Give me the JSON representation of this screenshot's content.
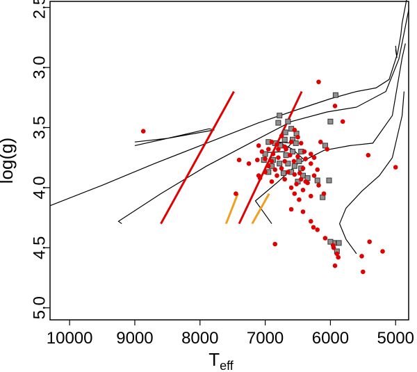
{
  "chart_data": {
    "type": "scatter",
    "xlabel": "T",
    "xlabel_subscript": "eff",
    "ylabel": "log(g)",
    "xlim": [
      10300,
      4800
    ],
    "ylim": [
      5.1,
      2.45
    ],
    "x_ticks": [
      10000,
      9000,
      8000,
      7000,
      6000,
      5000
    ],
    "y_ticks": [
      2.5,
      3.0,
      3.5,
      4.0,
      4.5,
      5.0
    ],
    "grid": false,
    "colors": {
      "circles": "#e00000",
      "squares": "#909090",
      "red_lines": "#e00000",
      "orange_lines": "#f0a020",
      "tracks": "#000000"
    },
    "red_circles": [
      [
        8870,
        3.53
      ],
      [
        6180,
        3.12
      ],
      [
        5810,
        3.45
      ],
      [
        5930,
        3.32
      ],
      [
        6550,
        3.52
      ],
      [
        6750,
        3.57
      ],
      [
        6900,
        3.62
      ],
      [
        7100,
        3.65
      ],
      [
        7050,
        3.7
      ],
      [
        6950,
        3.68
      ],
      [
        6820,
        3.64
      ],
      [
        6700,
        3.66
      ],
      [
        6600,
        3.62
      ],
      [
        6500,
        3.58
      ],
      [
        6450,
        3.63
      ],
      [
        6400,
        3.7
      ],
      [
        6380,
        3.76
      ],
      [
        6500,
        3.74
      ],
      [
        6620,
        3.73
      ],
      [
        6700,
        3.78
      ],
      [
        6800,
        3.75
      ],
      [
        6880,
        3.72
      ],
      [
        7000,
        3.76
      ],
      [
        7120,
        3.77
      ],
      [
        7250,
        3.8
      ],
      [
        7400,
        3.77
      ],
      [
        6950,
        3.82
      ],
      [
        6850,
        3.85
      ],
      [
        6750,
        3.84
      ],
      [
        6650,
        3.87
      ],
      [
        6550,
        3.89
      ],
      [
        6450,
        3.93
      ],
      [
        6350,
        3.96
      ],
      [
        6250,
        3.9
      ],
      [
        6200,
        3.85
      ],
      [
        6300,
        3.8
      ],
      [
        6420,
        3.84
      ],
      [
        6520,
        3.97
      ],
      [
        6600,
        4.0
      ],
      [
        6700,
        3.93
      ],
      [
        6820,
        3.9
      ],
      [
        6900,
        3.95
      ],
      [
        7000,
        3.87
      ],
      [
        7080,
        3.92
      ],
      [
        6550,
        4.05
      ],
      [
        6420,
        4.02
      ],
      [
        6300,
        4.07
      ],
      [
        6180,
        3.98
      ],
      [
        6100,
        4.05
      ],
      [
        6480,
        4.1
      ],
      [
        6600,
        4.18
      ],
      [
        6420,
        4.2
      ],
      [
        6300,
        4.28
      ],
      [
        6260,
        4.33
      ],
      [
        6200,
        4.35
      ],
      [
        6080,
        4.42
      ],
      [
        5960,
        4.48
      ],
      [
        5950,
        4.5
      ],
      [
        5900,
        4.55
      ],
      [
        5930,
        4.65
      ],
      [
        5880,
        4.58
      ],
      [
        5420,
        3.73
      ],
      [
        5000,
        3.83
      ],
      [
        5400,
        4.45
      ],
      [
        5200,
        4.53
      ],
      [
        5520,
        4.57
      ],
      [
        5500,
        4.7
      ],
      [
        6850,
        4.47
      ],
      [
        7450,
        4.05
      ],
      [
        7100,
        3.9
      ],
      [
        6560,
        3.78
      ],
      [
        6680,
        3.68
      ],
      [
        6800,
        3.68
      ],
      [
        6300,
        3.72
      ],
      [
        6250,
        3.75
      ],
      [
        6150,
        3.62
      ],
      [
        6050,
        3.68
      ],
      [
        6900,
        3.78
      ],
      [
        6470,
        3.88
      ],
      [
        6380,
        3.95
      ]
    ],
    "grey_squares": [
      [
        5920,
        3.23
      ],
      [
        6000,
        3.45
      ],
      [
        6780,
        3.4
      ],
      [
        6800,
        3.46
      ],
      [
        6650,
        3.45
      ],
      [
        6600,
        3.51
      ],
      [
        6690,
        3.54
      ],
      [
        6520,
        3.55
      ],
      [
        6580,
        3.6
      ],
      [
        6700,
        3.6
      ],
      [
        6850,
        3.63
      ],
      [
        6950,
        3.62
      ],
      [
        7000,
        3.72
      ],
      [
        6880,
        3.77
      ],
      [
        6780,
        3.8
      ],
      [
        6650,
        3.8
      ],
      [
        6550,
        3.82
      ],
      [
        6450,
        3.84
      ],
      [
        6420,
        3.9
      ],
      [
        6350,
        3.92
      ],
      [
        6200,
        3.94
      ],
      [
        6500,
        3.95
      ],
      [
        6600,
        3.87
      ],
      [
        6720,
        3.88
      ],
      [
        6900,
        3.82
      ],
      [
        7020,
        3.77
      ],
      [
        6950,
        3.87
      ],
      [
        6580,
        3.7
      ],
      [
        6450,
        3.7
      ],
      [
        6080,
        3.65
      ],
      [
        6020,
        3.94
      ],
      [
        6120,
        4.08
      ],
      [
        6680,
        3.73
      ],
      [
        6770,
        3.65
      ],
      [
        5950,
        4.46
      ],
      [
        5900,
        4.53
      ],
      [
        5870,
        4.46
      ],
      [
        6000,
        4.45
      ],
      [
        6480,
        3.78
      ],
      [
        6530,
        3.63
      ]
    ],
    "red_lines": [
      [
        [
          8600,
          4.3
        ],
        [
          7480,
          3.2
        ]
      ],
      [
        [
          7400,
          4.3
        ],
        [
          6440,
          3.2
        ]
      ]
    ],
    "orange_lines": [
      [
        [
          7600,
          4.3
        ],
        [
          7420,
          4.05
        ]
      ],
      [
        [
          7200,
          4.3
        ],
        [
          6940,
          4.05
        ]
      ]
    ],
    "tracks": [
      [
        [
          10300,
          4.15
        ],
        [
          9500,
          3.98
        ],
        [
          8700,
          3.8
        ],
        [
          7900,
          3.63
        ],
        [
          7100,
          3.46
        ],
        [
          6500,
          3.35
        ],
        [
          6000,
          3.26
        ],
        [
          5600,
          3.2
        ],
        [
          5300,
          3.17
        ],
        [
          5100,
          3.1
        ],
        [
          4970,
          2.88
        ],
        [
          4920,
          2.73
        ],
        [
          4900,
          2.63
        ],
        [
          4830,
          2.43
        ]
      ],
      [
        [
          9200,
          4.3
        ],
        [
          9250,
          4.28
        ],
        [
          8600,
          4.05
        ],
        [
          7900,
          3.82
        ],
        [
          7200,
          3.62
        ],
        [
          6600,
          3.45
        ],
        [
          6050,
          3.37
        ],
        [
          5600,
          3.33
        ],
        [
          5150,
          3.2
        ],
        [
          4950,
          2.93
        ],
        [
          4880,
          2.74
        ],
        [
          4800,
          2.52
        ]
      ],
      [
        [
          6900,
          4.3
        ],
        [
          7150,
          4.11
        ],
        [
          6800,
          3.95
        ],
        [
          6500,
          3.8
        ],
        [
          6100,
          3.69
        ],
        [
          5700,
          3.65
        ],
        [
          5350,
          3.63
        ],
        [
          5050,
          3.4
        ],
        [
          4900,
          2.92
        ],
        [
          4850,
          2.8
        ]
      ],
      [
        [
          5600,
          4.55
        ],
        [
          5760,
          4.43
        ],
        [
          5860,
          4.3
        ],
        [
          5760,
          4.17
        ],
        [
          5520,
          4.03
        ],
        [
          5250,
          3.9
        ],
        [
          5050,
          3.75
        ],
        [
          4900,
          3.4
        ],
        [
          4870,
          3.2
        ]
      ],
      [
        [
          9000,
          3.65
        ],
        [
          8500,
          3.59
        ],
        [
          7860,
          3.51
        ],
        [
          7780,
          3.52
        ],
        [
          8500,
          3.59
        ],
        [
          9000,
          3.62
        ]
      ],
      [
        [
          7050,
          3.71
        ],
        [
          6700,
          3.7
        ],
        [
          6600,
          3.63
        ],
        [
          6800,
          3.62
        ],
        [
          6580,
          3.68
        ],
        [
          6380,
          3.78
        ]
      ],
      [
        [
          5000,
          2.82
        ],
        [
          4980,
          2.92
        ],
        [
          5000,
          2.85
        ]
      ]
    ]
  }
}
